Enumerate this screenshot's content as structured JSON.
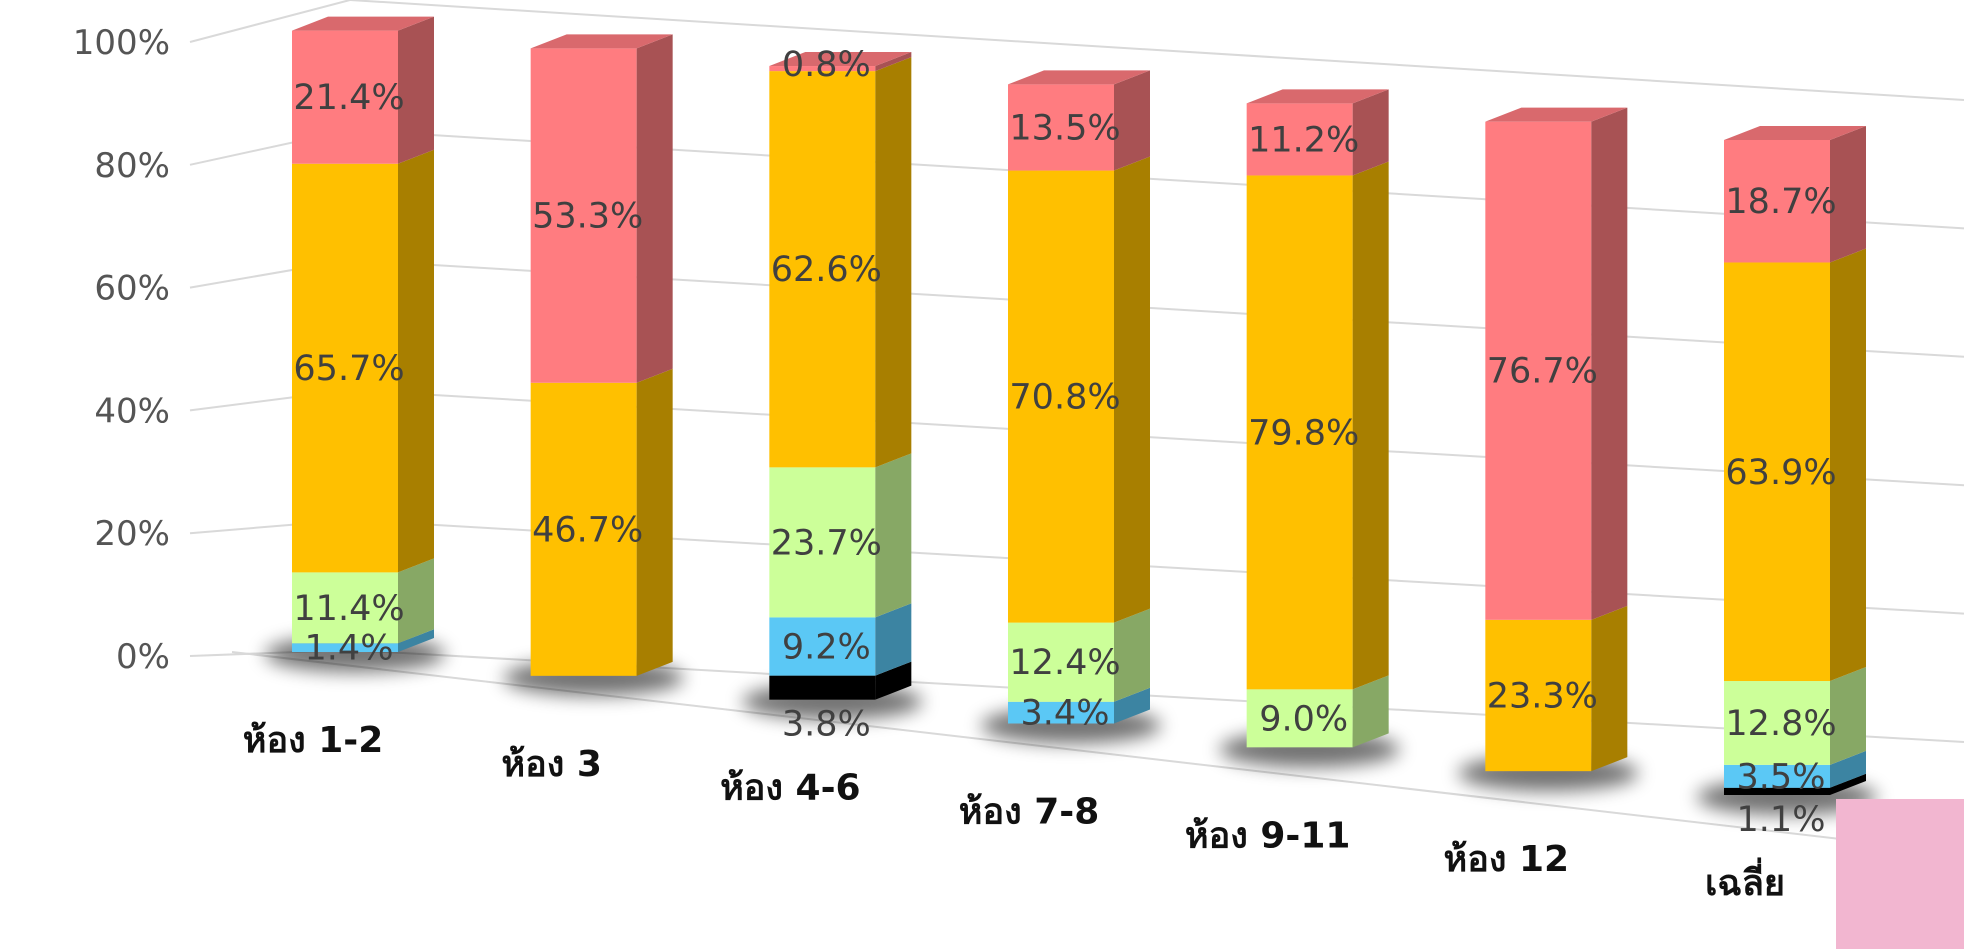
{
  "chart_data": {
    "type": "bar",
    "stacked": true,
    "three_d": true,
    "orientation": "vertical",
    "categories": [
      "ห้อง 1-2",
      "ห้อง 3",
      "ห้อง 4-6",
      "ห้อง 7-8",
      "ห้อง 9-11",
      "ห้อง 12",
      "เฉลี่ย"
    ],
    "series": [
      {
        "color": "#000000",
        "values": [
          0,
          0,
          3.8,
          0,
          0,
          0,
          1.1
        ]
      },
      {
        "color": "#5bc8f5",
        "values": [
          1.4,
          0,
          9.2,
          3.4,
          0,
          0,
          3.5
        ]
      },
      {
        "color": "#ccff99",
        "values": [
          11.4,
          0,
          23.7,
          12.4,
          9.0,
          0,
          12.8
        ]
      },
      {
        "color": "#ffc000",
        "values": [
          65.7,
          46.7,
          62.6,
          70.8,
          79.8,
          23.3,
          63.9
        ]
      },
      {
        "color": "#ff7c80",
        "values": [
          21.4,
          53.3,
          0.8,
          13.5,
          11.2,
          76.7,
          18.7
        ]
      }
    ],
    "data_labels": [
      [
        "",
        "1.4%",
        "11.4%",
        "65.7%",
        "21.4%"
      ],
      [
        "",
        "",
        "",
        "46.7%",
        "53.3%"
      ],
      [
        "3.8%",
        "9.2%",
        "23.7%",
        "62.6%",
        "0.8%"
      ],
      [
        "",
        "3.4%",
        "12.4%",
        "70.8%",
        "13.5%"
      ],
      [
        "",
        "",
        "9.0%",
        "79.8%",
        "11.2%"
      ],
      [
        "",
        "",
        "",
        "23.3%",
        "76.7%"
      ],
      [
        "1.1%",
        "3.5%",
        "12.8%",
        "63.9%",
        "18.7%"
      ]
    ],
    "ytick_labels": [
      "0%",
      "20%",
      "40%",
      "60%",
      "80%",
      "100%"
    ],
    "ylim": [
      0,
      100
    ],
    "grid": true,
    "legend": "none",
    "title": "",
    "xlabel": "",
    "ylabel": ""
  }
}
